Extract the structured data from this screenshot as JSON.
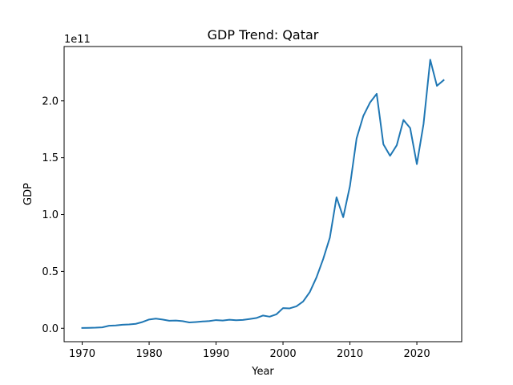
{
  "chart_data": {
    "type": "line",
    "title": "GDP Trend: Qatar",
    "xlabel": "Year",
    "ylabel": "GDP",
    "y_offset_label": "1e11",
    "xlim": [
      1967.3,
      2026.7
    ],
    "ylim": [
      -0.118,
      2.478
    ],
    "x_ticks": [
      1970,
      1980,
      1990,
      2000,
      2010,
      2020
    ],
    "x_tick_labels": [
      "1970",
      "1980",
      "1990",
      "2000",
      "2010",
      "2020"
    ],
    "y_ticks": [
      0.0,
      0.5,
      1.0,
      1.5,
      2.0
    ],
    "y_tick_labels": [
      "0.0",
      "0.5",
      "1.0",
      "1.5",
      "2.0"
    ],
    "grid": false,
    "line_color": "#1f77b4",
    "series": [
      {
        "x": [
          1970,
          1971,
          1972,
          1973,
          1974,
          1975,
          1976,
          1977,
          1978,
          1979,
          1980,
          1981,
          1982,
          1983,
          1984,
          1985,
          1986,
          1987,
          1988,
          1989,
          1990,
          1991,
          1992,
          1993,
          1994,
          1995,
          1996,
          1997,
          1998,
          1999,
          2000,
          2001,
          2002,
          2003,
          2004,
          2005,
          2006,
          2007,
          2008,
          2009,
          2010,
          2011,
          2012,
          2013,
          2014,
          2015,
          2016,
          2017,
          2018,
          2019,
          2020,
          2021,
          2022,
          2023,
          2024
        ],
        "values": [
          0.003,
          0.004,
          0.005,
          0.008,
          0.022,
          0.025,
          0.031,
          0.034,
          0.039,
          0.055,
          0.077,
          0.085,
          0.077,
          0.066,
          0.068,
          0.063,
          0.051,
          0.055,
          0.06,
          0.064,
          0.072,
          0.068,
          0.075,
          0.071,
          0.073,
          0.081,
          0.09,
          0.112,
          0.102,
          0.122,
          0.177,
          0.175,
          0.193,
          0.235,
          0.318,
          0.447,
          0.608,
          0.797,
          1.152,
          0.977,
          1.25,
          1.671,
          1.867,
          1.985,
          2.062,
          1.618,
          1.517,
          1.61,
          1.832,
          1.761,
          1.444,
          1.797,
          2.362,
          2.132,
          2.182
        ]
      }
    ]
  }
}
